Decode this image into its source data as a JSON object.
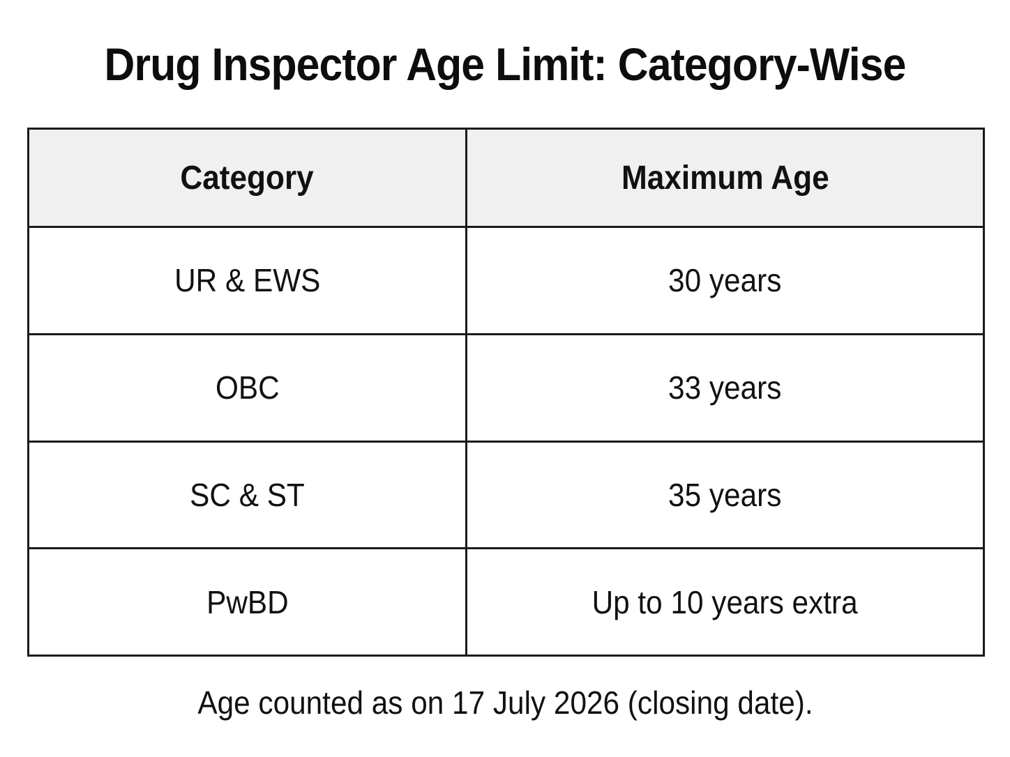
{
  "page": {
    "title": "Drug Inspector Age Limit: Category-Wise",
    "footnote": "Age counted as on 17 July 2026 (closing date)."
  },
  "table": {
    "headers": {
      "category": "Category",
      "maximum_age": "Maximum Age"
    },
    "rows": [
      {
        "category": "UR & EWS",
        "maximum_age": "30 years"
      },
      {
        "category": "OBC",
        "maximum_age": "33 years"
      },
      {
        "category": "SC & ST",
        "maximum_age": "35 years"
      },
      {
        "category": "PwBD",
        "maximum_age": "Up to 10 years extra"
      }
    ]
  },
  "colors": {
    "header_background": "#f0f0f0",
    "border": "#1a1a1a",
    "text": "#111111"
  }
}
